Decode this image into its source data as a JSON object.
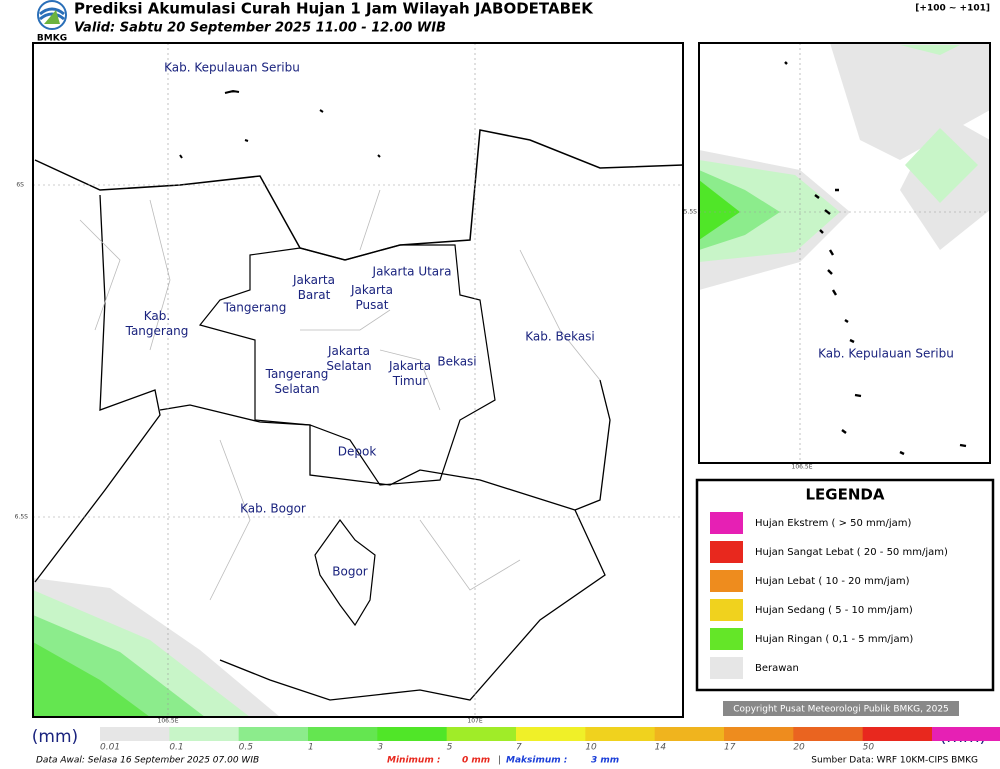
{
  "header": {
    "title": "Prediksi Akumulasi Curah Hujan 1 Jam Wilayah JABODETABEK",
    "valid": "Valid: Sabtu 20 September 2025 11.00 - 12.00 WIB",
    "range": "[+100 ~ +101]",
    "logo": "BMKG"
  },
  "map": {
    "labels": [
      {
        "lines": [
          "Kab. Kepulauan Seribu"
        ]
      },
      {
        "lines": [
          "Jakarta Utara"
        ]
      },
      {
        "lines": [
          "Jakarta",
          "Barat"
        ]
      },
      {
        "lines": [
          "Jakarta",
          "Pusat"
        ]
      },
      {
        "lines": [
          "Tangerang"
        ]
      },
      {
        "lines": [
          "Kab.",
          "Tangerang"
        ]
      },
      {
        "lines": [
          "Kab. Bekasi"
        ]
      },
      {
        "lines": [
          "Bekasi"
        ]
      },
      {
        "lines": [
          "Jakarta",
          "Selatan"
        ]
      },
      {
        "lines": [
          "Jakarta",
          "Timur"
        ]
      },
      {
        "lines": [
          "Tangerang",
          "Selatan"
        ]
      },
      {
        "lines": [
          "Depok"
        ]
      },
      {
        "lines": [
          "Kab. Bogor"
        ]
      },
      {
        "lines": [
          "Bogor"
        ]
      }
    ],
    "grid_labels": [
      "6S",
      "6.5S",
      "106.5E",
      "107E"
    ]
  },
  "inset": {
    "labels": [
      "Kab. Kepulauan Seribu"
    ],
    "grid_labels": [
      "5.5S",
      "106.5E"
    ]
  },
  "legend": {
    "title": "LEGENDA",
    "items": [
      {
        "label": "Hujan Ekstrem ( > 50 mm/jam)",
        "color": "#e620b4"
      },
      {
        "label": "Hujan Sangat Lebat ( 20 - 50 mm/jam)",
        "color": "#e8281e"
      },
      {
        "label": "Hujan Lebat ( 10 - 20 mm/jam)",
        "color": "#ee8c1e"
      },
      {
        "label": "Hujan Sedang ( 5 - 10 mm/jam)",
        "color": "#f0d21e"
      },
      {
        "label": "Hujan Ringan ( 0,1 - 5 mm/jam)",
        "color": "#64e628"
      },
      {
        "label": "Berawan",
        "color": "#e6e6e6"
      }
    ]
  },
  "copyright": "Copyright Pusat Meteorologi Publik BMKG, 2025",
  "colorbar": {
    "unit": "(mm)",
    "ticks": [
      0.01,
      0.1,
      0.5,
      1,
      3,
      5,
      7,
      10,
      14,
      17,
      20,
      50
    ],
    "colors": [
      "#e6e6e6",
      "#c8f5c8",
      "#8cec8c",
      "#64e650",
      "#50e628",
      "#a0ec28",
      "#f0f028",
      "#f0d21e",
      "#f0b41e",
      "#ee8c1e",
      "#ea6420",
      "#e8281e",
      "#e620b4"
    ]
  },
  "footer": {
    "data_awal": "Data Awal: Selasa 16 September 2025 07.00 WIB",
    "min_label": "Minimum :",
    "min_value": "0 mm",
    "max_label": "Maksimum :",
    "max_value": "3 mm",
    "source": "Sumber Data: WRF 10KM-CIPS BMKG"
  }
}
